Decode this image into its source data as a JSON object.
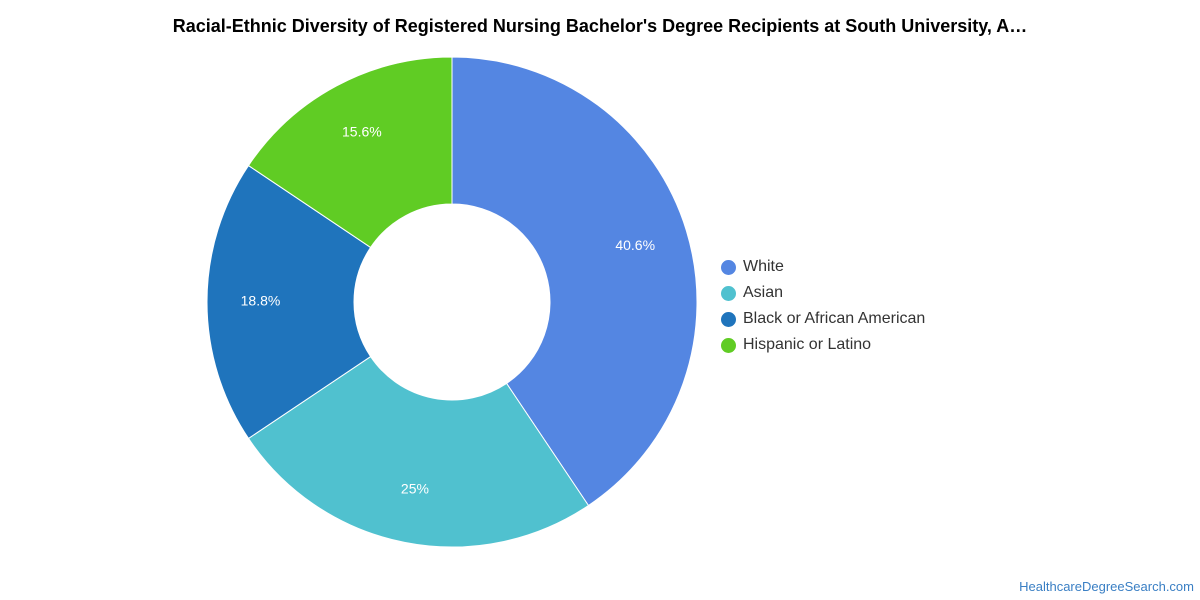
{
  "chart_data": {
    "type": "pie",
    "title": "Racial-Ethnic Diversity of Registered Nursing Bachelor's Degree Recipients at South University, A…",
    "categories": [
      "White",
      "Asian",
      "Black or African American",
      "Hispanic or Latino"
    ],
    "values": [
      40.6,
      25,
      18.8,
      15.6
    ],
    "data_labels": [
      "40.6%",
      "25%",
      "18.8%",
      "15.6%"
    ],
    "colors": [
      "#5486e2",
      "#50c1cf",
      "#1f74bc",
      "#60cc24"
    ],
    "donut": true,
    "legend_position": "right"
  },
  "source": "HealthcareDegreeSearch.com"
}
